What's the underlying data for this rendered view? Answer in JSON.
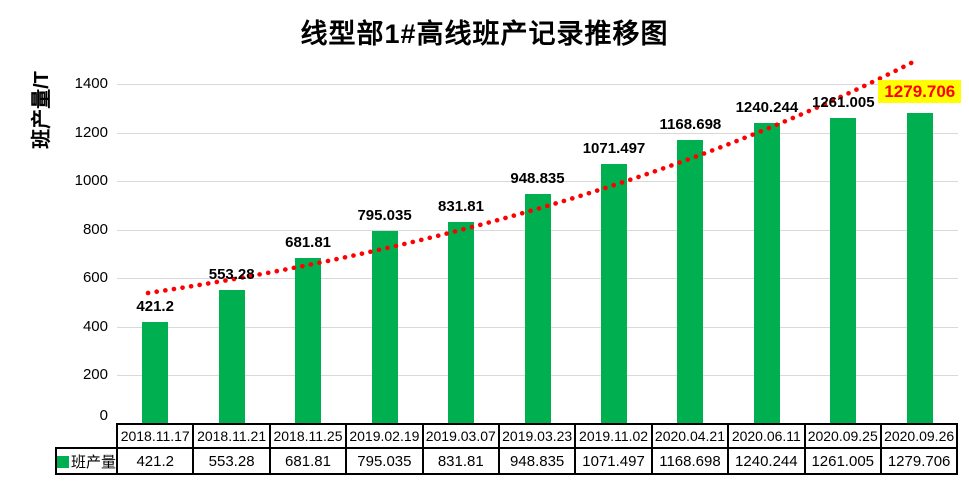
{
  "title": "线型部1#高线班产记录推移图",
  "y_axis": {
    "label": "班产量/T"
  },
  "legend": {
    "label": "班产量",
    "swatch_color": "#00B050"
  },
  "colors": {
    "bar": "#00B050",
    "trendline": "#FF0000",
    "gridline": "#D9D9D9",
    "highlight_background": "#FFFF00",
    "highlight_text": "#FF0000",
    "table_border": "#000000",
    "text": "#000000"
  },
  "chart_data": {
    "type": "bar",
    "title": "线型部1#高线班产记录推移图",
    "xlabel": "",
    "ylabel": "班产量/T",
    "categories": [
      "2018.11.17",
      "2018.11.21",
      "2018.11.25",
      "2019.02.19",
      "2019.03.07",
      "2019.03.23",
      "2019.11.02",
      "2020.04.21",
      "2020.06.11",
      "2020.09.25",
      "2020.09.26"
    ],
    "values": [
      421.2,
      553.28,
      681.81,
      795.035,
      831.81,
      948.835,
      1071.497,
      1168.698,
      1240.244,
      1261.005,
      1279.706
    ],
    "value_labels": [
      "421.2",
      "553.28",
      "681.81",
      "795.035",
      "831.81",
      "948.835",
      "1071.497",
      "1168.698",
      "1240.244",
      "1261.005",
      "1279.706"
    ],
    "ylim": [
      0,
      1400
    ],
    "ytick_interval": 200,
    "yticks": [
      0,
      200,
      400,
      600,
      800,
      1000,
      1200,
      1400
    ],
    "grid": true,
    "legend_entries": [
      "班产量"
    ],
    "legend_position": "bottom-table-row",
    "bar_color": "#00B050",
    "trendline": {
      "style": "dotted",
      "color": "#FF0000"
    },
    "highlight": {
      "index": 10,
      "background": "#FFFF00",
      "text_color": "#FF0000"
    },
    "data_table_shown": true
  }
}
